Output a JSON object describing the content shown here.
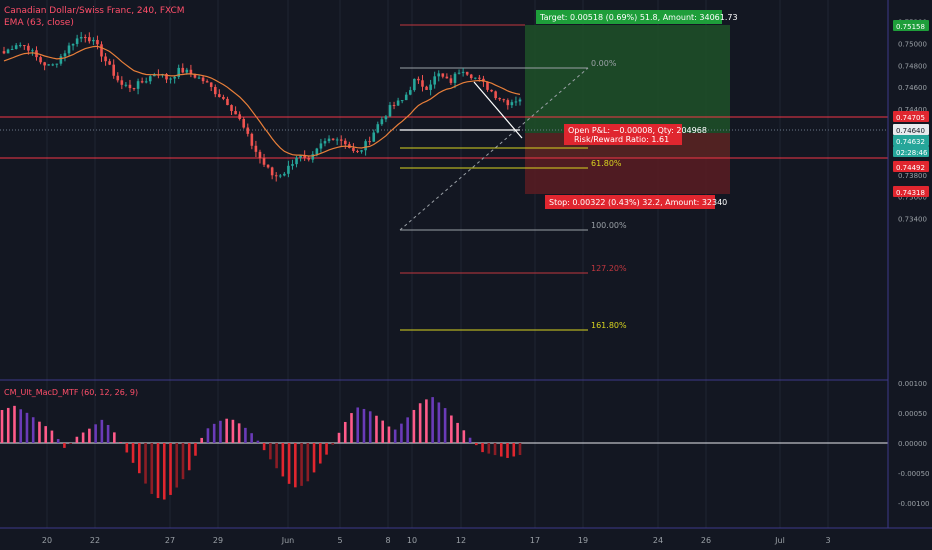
{
  "header": {
    "symbol_line": "Canadian Dollar/Swiss Franc, 240, FXCM",
    "ma_label": "EMA (63, close)"
  },
  "colors": {
    "background": "#131722",
    "up": "#26a69a",
    "down": "#ef5350",
    "ema": "#e87f3a",
    "red_line": "#f23645",
    "yellow": "#d8d420",
    "macd_pos_strong": "#ff5b8a",
    "macd_pos_weak": "#6a3bb8",
    "macd_neg_strong": "#e0262f",
    "macd_neg_weak": "#8b1d25",
    "target_box": "#1e5128",
    "stop_box": "#5a1c22",
    "grid": "#1f2433"
  },
  "price_axis": {
    "ticks": [
      "0.75200",
      "0.75000",
      "0.74800",
      "0.74600",
      "0.74400",
      "0.74200",
      "0.74000",
      "0.73800",
      "0.73600",
      "0.73400"
    ],
    "badges": [
      {
        "value": "0.75158",
        "color": "#1e9e3a"
      },
      {
        "value": "0.74705",
        "color": "#e0262f"
      },
      {
        "value": "0.74640",
        "color": "#e8eaed"
      },
      {
        "value": "0.74632",
        "color": "#26a69a"
      },
      {
        "value": "02:28:46",
        "color": "#26a69a"
      },
      {
        "value": "0.74492",
        "color": "#e0262f"
      },
      {
        "value": "0.74318",
        "color": "#e0262f"
      }
    ]
  },
  "time_axis": {
    "labels": [
      "20",
      "22",
      "27",
      "29",
      "Jun",
      "5",
      "8",
      "10",
      "12",
      "17",
      "19",
      "24",
      "26",
      "Jul",
      "3"
    ]
  },
  "fib_levels": [
    {
      "label": "0.00%",
      "color": "#9aa0a6"
    },
    {
      "label": "61.80%",
      "color": "#d8d420"
    },
    {
      "label": "100.00%",
      "color": "#9aa0a6"
    },
    {
      "label": "127.20%",
      "color": "#c0373f"
    },
    {
      "label": "161.80%",
      "color": "#d8d420"
    }
  ],
  "position": {
    "target_label": "Target: 0.00518 (0.69%) 51.8, Amount: 34061.73",
    "open_pl_label": "Open P&L: −0.00008, Qty: 204968",
    "risk_reward_label": "Risk/Reward Ratio: 1.61",
    "stop_label": "Stop: 0.00322 (0.43%) 32.2, Amount: 32340"
  },
  "macd": {
    "label": "CM_Ult_MacD_MTF (60, 12, 26, 9)",
    "ticks": [
      "0.00100",
      "0.00050",
      "0.00000",
      "-0.00050",
      "-0.00100"
    ]
  },
  "chart_data": {
    "type": "candlestick",
    "symbol": "CADCHF",
    "timeframe": "240",
    "ylim": [
      0.7335,
      0.7525
    ],
    "price_levels": {
      "target": 0.75158,
      "resistance": 0.74705,
      "last": 0.7464,
      "current": 0.74632,
      "entry": 0.74492,
      "stop": 0.74318
    },
    "fibonacci": [
      {
        "ratio": 0.0,
        "price": 0.7496
      },
      {
        "ratio": 0.618,
        "price": 0.7443
      },
      {
        "ratio": 1.0,
        "price": 0.7414
      },
      {
        "ratio": 1.272,
        "price": 0.7392
      },
      {
        "ratio": 1.618,
        "price": 0.7366
      }
    ],
    "price_path": [
      0.7491,
      0.75,
      0.7497,
      0.7484,
      0.7478,
      0.749,
      0.7503,
      0.7508,
      0.7496,
      0.7478,
      0.7462,
      0.746,
      0.7466,
      0.7474,
      0.7467,
      0.7476,
      0.7472,
      0.7466,
      0.7456,
      0.7447,
      0.7432,
      0.741,
      0.7392,
      0.7378,
      0.7383,
      0.7398,
      0.7391,
      0.7407,
      0.7415,
      0.7411,
      0.7398,
      0.741,
      0.7428,
      0.7442,
      0.7448,
      0.7466,
      0.746,
      0.7472,
      0.7464,
      0.7478,
      0.747,
      0.7462,
      0.7452,
      0.7446,
      0.745
    ],
    "macd_histogram": [
      0.00055,
      0.00062,
      0.0005,
      0.00035,
      0.0002,
      -0.0001,
      0.00012,
      0.00025,
      0.0004,
      0.00015,
      -0.0002,
      -0.00055,
      -0.0009,
      -0.00095,
      -0.0007,
      -0.0004,
      0.0002,
      0.00035,
      0.00042,
      0.0003,
      0.00012,
      -0.0002,
      -0.0005,
      -0.00075,
      -0.0007,
      -0.0004,
      -0.0001,
      0.0003,
      0.0006,
      0.00055,
      0.0004,
      0.0002,
      0.0004,
      0.00065,
      0.00078,
      0.0006,
      0.00035,
      0.0001,
      -0.00015,
      -0.0002,
      -0.00025,
      -0.0002
    ]
  }
}
